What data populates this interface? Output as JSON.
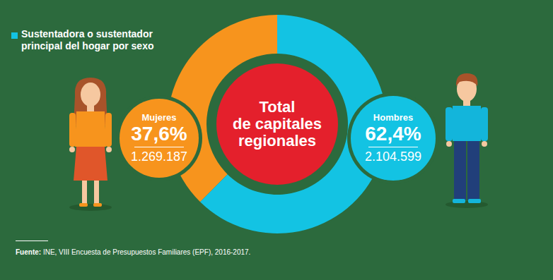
{
  "chart_data": {
    "type": "pie",
    "title": "Sustentadora o sustentador principal del hogar por sexo",
    "center_label": [
      "Total",
      "de capitales",
      "regionales"
    ],
    "categories": [
      "Mujeres",
      "Hombres"
    ],
    "values": [
      37.6,
      62.4
    ],
    "value_labels": [
      "37,6%",
      "62,4%"
    ],
    "counts": [
      {
        "value": 1269187,
        "label": "1.269.187"
      },
      {
        "value": 2104599,
        "label": "2.104.599"
      }
    ],
    "colors": [
      "#f7941d",
      "#13c3e3"
    ],
    "data_labels": true,
    "source_label": "Fuente:",
    "source": "INE, VIII Encuesta de Presupuestos Familiares (EPF), 2016-2017."
  }
}
